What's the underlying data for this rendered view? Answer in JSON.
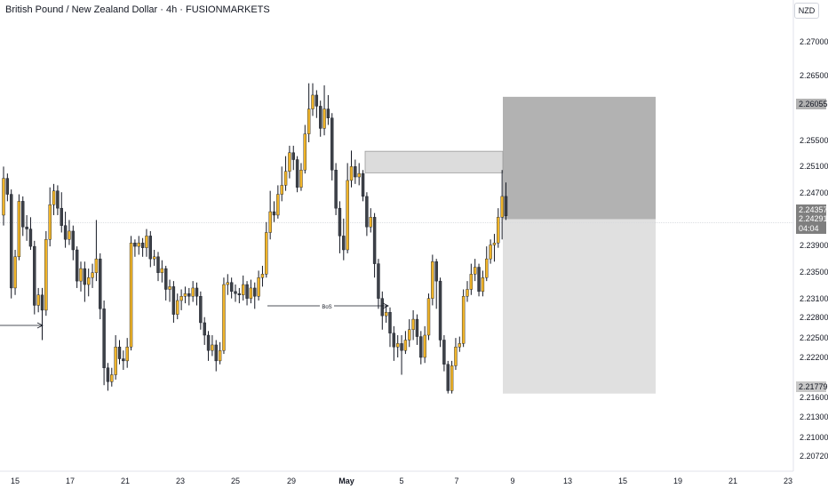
{
  "header": {
    "title": "British Pound / New Zealand Dollar · 4h · FUSIONMARKETS",
    "currency": "NZD"
  },
  "colors": {
    "up_body": "#f0b429",
    "down_body": "#3d4148",
    "wick": "#131722",
    "zone_dark": "#b2b2b2",
    "zone_light": "#e0e0e0",
    "ob_zone": "#dcdcdc",
    "price_tag": "#7f7f7f"
  },
  "chart_data": {
    "type": "candlestick",
    "title": "British Pound / New Zealand Dollar · 4h · FUSIONMARKETS",
    "y_ticks": [
      "2.27000",
      "2.26500",
      "2.25500",
      "2.25100",
      "2.24700",
      "2.23900",
      "2.23500",
      "2.23100",
      "2.22800",
      "2.22500",
      "2.22200",
      "2.21600",
      "2.21300",
      "2.21000",
      "2.20720"
    ],
    "x_ticks": [
      "15",
      "17",
      "21",
      "23",
      "25",
      "29",
      "May",
      "5",
      "7",
      "9",
      "13",
      "15",
      "19",
      "21",
      "23"
    ],
    "ylim": [
      2.2066,
      2.2745
    ],
    "price_tags": {
      "target": "2.26055",
      "last_price": "2.24357",
      "entry": "2.24291",
      "countdown": "04:04",
      "stop": "2.21779"
    },
    "annotations": {
      "bos_label": "BoS"
    },
    "trade_zone": {
      "entry": 2.24291,
      "target": 2.26055,
      "stop": 2.21779
    },
    "ob_zone": {
      "top": 2.2527,
      "bottom": 2.2496
    },
    "candles": [
      [
        2.2435,
        2.2488,
        2.2505,
        2.242
      ],
      [
        2.2488,
        2.2465,
        2.2495,
        2.2455
      ],
      [
        2.2465,
        2.233,
        2.2472,
        2.2315
      ],
      [
        2.233,
        2.2375,
        2.2385,
        2.232
      ],
      [
        2.2375,
        2.2455,
        2.2465,
        2.237
      ],
      [
        2.2455,
        2.2418,
        2.2462,
        2.2405
      ],
      [
        2.2418,
        2.2415,
        2.2435,
        2.2398
      ],
      [
        2.2415,
        2.239,
        2.2432,
        2.2385
      ],
      [
        2.239,
        2.2305,
        2.2398,
        2.2292
      ],
      [
        2.2305,
        2.232,
        2.233,
        2.2295
      ],
      [
        2.232,
        2.2298,
        2.233,
        2.2255
      ],
      [
        2.2298,
        2.24,
        2.2412,
        2.229
      ],
      [
        2.24,
        2.245,
        2.2475,
        2.239
      ],
      [
        2.245,
        2.247,
        2.248,
        2.2435
      ],
      [
        2.247,
        2.2445,
        2.2478,
        2.2435
      ],
      [
        2.2445,
        2.242,
        2.2468,
        2.241
      ],
      [
        2.242,
        2.24,
        2.244,
        2.2388
      ],
      [
        2.24,
        2.2412,
        2.2428,
        2.2392
      ],
      [
        2.2412,
        2.2385,
        2.242,
        2.237
      ],
      [
        2.2385,
        2.234,
        2.239,
        2.233
      ],
      [
        2.234,
        2.2358,
        2.2368,
        2.2325
      ],
      [
        2.2358,
        2.2335,
        2.2368,
        2.231
      ],
      [
        2.2335,
        2.2345,
        2.2358,
        2.2318
      ],
      [
        2.2345,
        2.2352,
        2.2365,
        2.233
      ],
      [
        2.2352,
        2.2372,
        2.2428,
        2.234
      ],
      [
        2.2372,
        2.23,
        2.238,
        2.2285
      ],
      [
        2.23,
        2.2215,
        2.2312,
        2.219
      ],
      [
        2.2215,
        2.2195,
        2.2222,
        2.2182
      ],
      [
        2.2195,
        2.2205,
        2.2215,
        2.2188
      ],
      [
        2.2205,
        2.2245,
        2.2262,
        2.2198
      ],
      [
        2.2245,
        2.2228,
        2.2255,
        2.222
      ],
      [
        2.2228,
        2.2225,
        2.224,
        2.2212
      ],
      [
        2.2225,
        2.2245,
        2.2258,
        2.2215
      ],
      [
        2.2245,
        2.2395,
        2.2405,
        2.224
      ],
      [
        2.2395,
        2.239,
        2.24,
        2.2375
      ],
      [
        2.239,
        2.2395,
        2.2405,
        2.2378
      ],
      [
        2.2395,
        2.2388,
        2.2402,
        2.2375
      ],
      [
        2.2388,
        2.2405,
        2.2415,
        2.2375
      ],
      [
        2.2405,
        2.2372,
        2.2412,
        2.236
      ],
      [
        2.2372,
        2.2375,
        2.2385,
        2.2362
      ],
      [
        2.2375,
        2.2352,
        2.2382,
        2.234
      ],
      [
        2.2352,
        2.2358,
        2.237,
        2.2338
      ],
      [
        2.2358,
        2.2328,
        2.2362,
        2.2312
      ],
      [
        2.2328,
        2.2332,
        2.2342,
        2.231
      ],
      [
        2.2332,
        2.2292,
        2.234,
        2.228
      ],
      [
        2.2292,
        2.2312,
        2.2322,
        2.2285
      ],
      [
        2.2312,
        2.2318,
        2.2328,
        2.2298
      ],
      [
        2.2318,
        2.2322,
        2.2332,
        2.2308
      ],
      [
        2.2322,
        2.2318,
        2.233,
        2.2305
      ],
      [
        2.2318,
        2.233,
        2.234,
        2.231
      ],
      [
        2.233,
        2.2318,
        2.2338,
        2.2305
      ],
      [
        2.2318,
        2.228,
        2.2325,
        2.227
      ],
      [
        2.228,
        2.2262,
        2.2288,
        2.2248
      ],
      [
        2.2262,
        2.224,
        2.2268,
        2.2225
      ],
      [
        2.224,
        2.2248,
        2.2262,
        2.2232
      ],
      [
        2.2248,
        2.2225,
        2.2255,
        2.221
      ],
      [
        2.2225,
        2.224,
        2.2252,
        2.222
      ],
      [
        2.224,
        2.2335,
        2.2345,
        2.2235
      ],
      [
        2.2335,
        2.2338,
        2.235,
        2.232
      ],
      [
        2.2338,
        2.2325,
        2.2345,
        2.2315
      ],
      [
        2.2325,
        2.2322,
        2.2335,
        2.231
      ],
      [
        2.2322,
        2.232,
        2.233,
        2.2308
      ],
      [
        2.232,
        2.2335,
        2.2348,
        2.2312
      ],
      [
        2.2335,
        2.2315,
        2.234,
        2.2305
      ],
      [
        2.2315,
        2.233,
        2.2342,
        2.2308
      ],
      [
        2.233,
        2.2318,
        2.2338,
        2.23
      ],
      [
        2.2318,
        2.2345,
        2.2355,
        2.2312
      ],
      [
        2.2345,
        2.235,
        2.2362,
        2.2332
      ],
      [
        2.235,
        2.241,
        2.2425,
        2.2345
      ],
      [
        2.241,
        2.244,
        2.247,
        2.24
      ],
      [
        2.244,
        2.2435,
        2.2455,
        2.2425
      ],
      [
        2.2435,
        2.2465,
        2.2478,
        2.243
      ],
      [
        2.2465,
        2.2478,
        2.2505,
        2.2455
      ],
      [
        2.2478,
        2.2498,
        2.252,
        2.247
      ],
      [
        2.2498,
        2.2525,
        2.2535,
        2.2488
      ],
      [
        2.2525,
        2.2515,
        2.2535,
        2.25
      ],
      [
        2.2515,
        2.2475,
        2.252,
        2.2468
      ],
      [
        2.2475,
        2.25,
        2.251,
        2.247
      ],
      [
        2.25,
        2.2552,
        2.2565,
        2.2495
      ],
      [
        2.2552,
        2.2588,
        2.2625,
        2.254
      ],
      [
        2.2588,
        2.2608,
        2.2625,
        2.2578
      ],
      [
        2.2608,
        2.2592,
        2.2615,
        2.2575
      ],
      [
        2.2592,
        2.256,
        2.26,
        2.2548
      ],
      [
        2.256,
        2.2588,
        2.2622,
        2.255
      ],
      [
        2.2588,
        2.2575,
        2.2608,
        2.2565
      ],
      [
        2.2575,
        2.25,
        2.2582,
        2.2485
      ],
      [
        2.25,
        2.2445,
        2.251,
        2.2435
      ],
      [
        2.2445,
        2.2405,
        2.2455,
        2.238
      ],
      [
        2.2405,
        2.2385,
        2.243,
        2.237
      ],
      [
        2.2385,
        2.2485,
        2.251,
        2.238
      ],
      [
        2.2485,
        2.2505,
        2.2528,
        2.2475
      ],
      [
        2.2505,
        2.249,
        2.2515,
        2.248
      ],
      [
        2.249,
        2.2495,
        2.251,
        2.2478
      ],
      [
        2.2495,
        2.2462,
        2.25,
        2.2455
      ],
      [
        2.2462,
        2.2418,
        2.2468,
        2.2405
      ],
      [
        2.2418,
        2.2432,
        2.2445,
        2.241
      ],
      [
        2.2432,
        2.2365,
        2.2438,
        2.2345
      ],
      [
        2.2365,
        2.2315,
        2.2372,
        2.23
      ],
      [
        2.2315,
        2.229,
        2.2325,
        2.227
      ],
      [
        2.229,
        2.2295,
        2.2305,
        2.228
      ],
      [
        2.2295,
        2.2265,
        2.2302,
        2.2245
      ],
      [
        2.2265,
        2.2245,
        2.2275,
        2.2225
      ],
      [
        2.2245,
        2.225,
        2.2262,
        2.223
      ],
      [
        2.225,
        2.224,
        2.2262,
        2.2205
      ],
      [
        2.224,
        2.2255,
        2.2268,
        2.2235
      ],
      [
        2.2255,
        2.227,
        2.2285,
        2.2245
      ],
      [
        2.227,
        2.2285,
        2.2298,
        2.2255
      ],
      [
        2.2285,
        2.226,
        2.2292,
        2.2248
      ],
      [
        2.226,
        2.223,
        2.2268,
        2.222
      ],
      [
        2.223,
        2.2262,
        2.2275,
        2.2222
      ],
      [
        2.2262,
        2.2315,
        2.2322,
        2.2255
      ],
      [
        2.2315,
        2.2368,
        2.2378,
        2.2305
      ],
      [
        2.2368,
        2.234,
        2.2372,
        2.23
      ],
      [
        2.234,
        2.2255,
        2.2345,
        2.2245
      ],
      [
        2.2255,
        2.222,
        2.2262,
        2.221
      ],
      [
        2.222,
        2.2182,
        2.2225,
        2.2178
      ],
      [
        2.2182,
        2.2218,
        2.2225,
        2.2178
      ],
      [
        2.2218,
        2.2245,
        2.2258,
        2.2212
      ],
      [
        2.2245,
        2.225,
        2.226,
        2.2238
      ],
      [
        2.225,
        2.2318,
        2.2328,
        2.2245
      ],
      [
        2.2318,
        2.2328,
        2.234,
        2.231
      ],
      [
        2.2328,
        2.235,
        2.2365,
        2.232
      ],
      [
        2.235,
        2.236,
        2.2372,
        2.234
      ],
      [
        2.236,
        2.2325,
        2.2365,
        2.2318
      ],
      [
        2.2325,
        2.2345,
        2.2355,
        2.2318
      ],
      [
        2.2345,
        2.2372,
        2.239,
        2.234
      ],
      [
        2.2372,
        2.2392,
        2.24,
        2.2365
      ],
      [
        2.2392,
        2.2395,
        2.2408,
        2.2368
      ],
      [
        2.2395,
        2.2432,
        2.2445,
        2.2388
      ],
      [
        2.2432,
        2.2462,
        2.25,
        2.24
      ],
      [
        2.2462,
        2.2434,
        2.2482,
        2.2428
      ]
    ]
  }
}
